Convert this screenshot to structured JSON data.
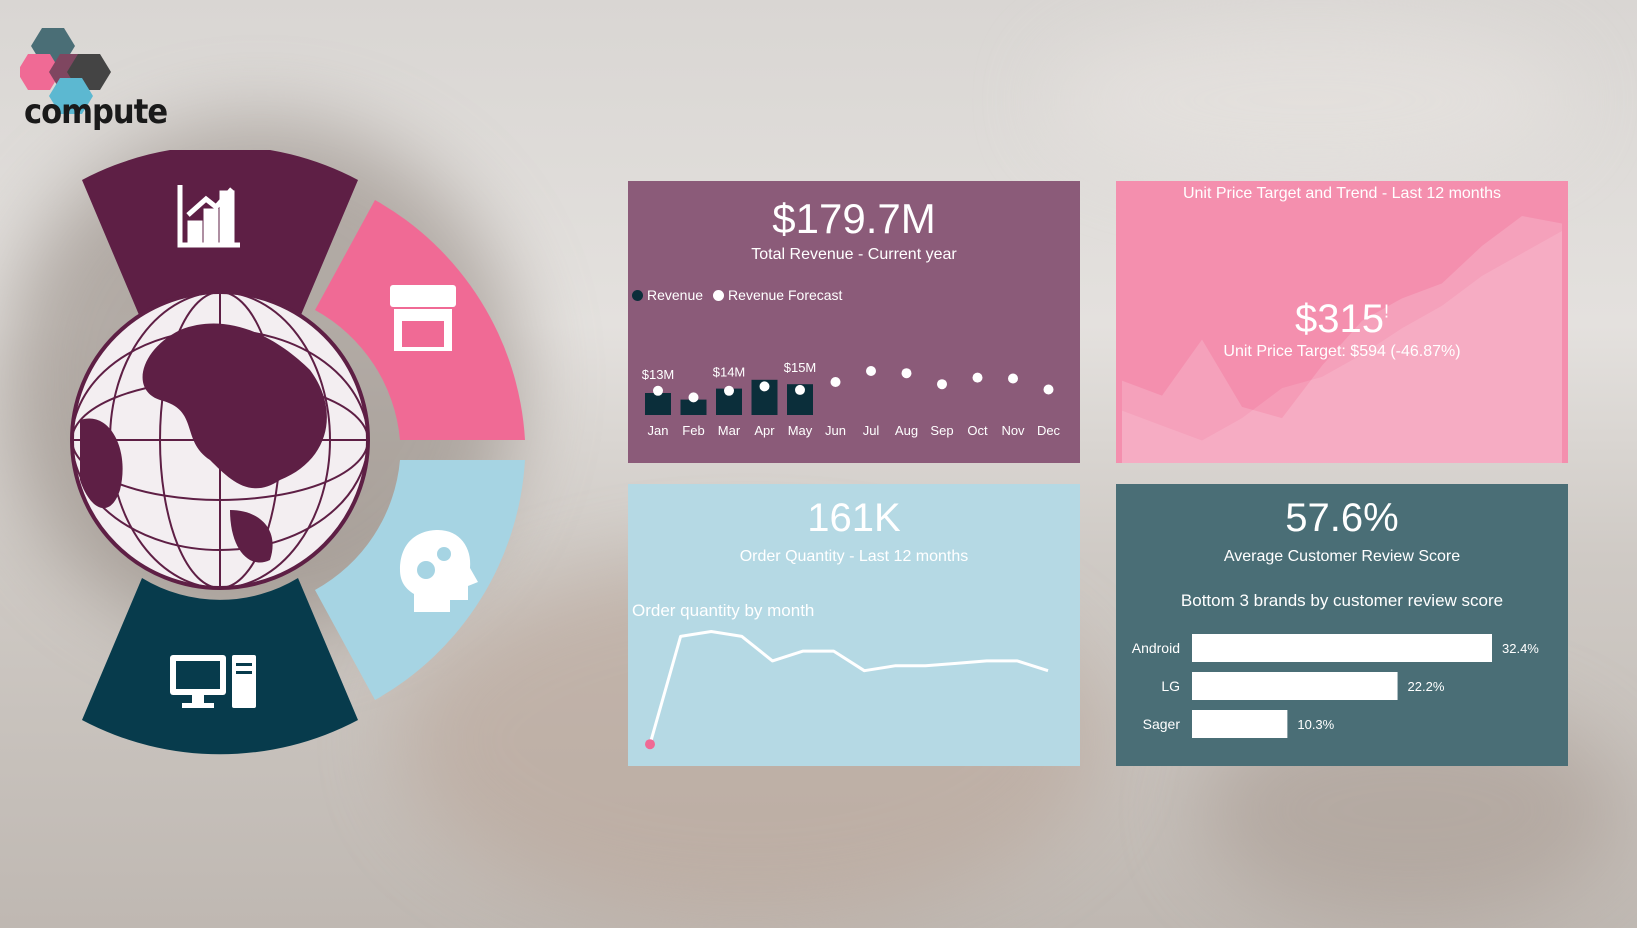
{
  "brand": {
    "name": "compute"
  },
  "nav": {
    "segments": [
      {
        "name": "analytics",
        "icon": "bar-chart-icon",
        "color": "#5e1f45"
      },
      {
        "name": "store",
        "icon": "storefront-icon",
        "color": "#f06a95"
      },
      {
        "name": "ai",
        "icon": "head-gears-icon",
        "color": "#a6d4e3"
      },
      {
        "name": "computer",
        "icon": "desktop-computer-icon",
        "color": "#073b4c"
      }
    ],
    "center_icon": "globe-icon"
  },
  "revenue_card": {
    "value": "$179.7M",
    "label": "Total Revenue - Current year",
    "legend": [
      "Revenue",
      "Revenue Forecast"
    ],
    "color": "#8b5b79"
  },
  "unit_price_card": {
    "title": "Unit Price Target and Trend - Last 12 months",
    "value": "$315",
    "marker": "!",
    "target_label": "Unit Price Target: $594 (-46.87%)",
    "color": "#f48fae"
  },
  "order_card": {
    "value": "161K",
    "label": "Order Quantity - Last 12 months",
    "chart_title": "Order quantity by month",
    "color": "#b5d9e4"
  },
  "review_card": {
    "value": "57.6%",
    "label": "Average Customer Review Score",
    "chart_title": "Bottom 3 brands by customer review score",
    "color": "#4a6e76"
  },
  "chart_data": [
    {
      "type": "bar",
      "categories": [
        "Jan",
        "Feb",
        "Mar",
        "Apr",
        "May",
        "Jun",
        "Jul",
        "Aug",
        "Sep",
        "Oct",
        "Nov",
        "Dec"
      ],
      "series": [
        {
          "name": "Revenue",
          "values": [
            13,
            11.5,
            14,
            16,
            15,
            null,
            null,
            null,
            null,
            null,
            null,
            null
          ]
        },
        {
          "name": "Revenue Forecast",
          "values": [
            13.5,
            12,
            13.5,
            14.5,
            13.7,
            15.5,
            18,
            17.5,
            15,
            16.5,
            16.3,
            13.8
          ]
        }
      ],
      "data_labels": [
        {
          "index": 0,
          "text": "$13M"
        },
        {
          "index": 2,
          "text": "$14M"
        },
        {
          "index": 4,
          "text": "$15M"
        }
      ]
    },
    {
      "type": "area",
      "x": [
        1,
        2,
        3,
        4,
        5,
        6,
        7,
        8,
        9,
        10,
        11,
        12
      ],
      "series": [
        {
          "values": [
            220,
            180,
            330,
            150,
            120,
            260,
            380,
            440,
            480,
            580,
            660,
            640
          ]
        },
        {
          "values": [
            140,
            100,
            60,
            120,
            200,
            230,
            290,
            360,
            420,
            500,
            560,
            620
          ]
        }
      ]
    },
    {
      "type": "line",
      "x": [
        1,
        2,
        3,
        4,
        5,
        6,
        7,
        8,
        9,
        10,
        11,
        12,
        13,
        14
      ],
      "series": [
        {
          "values": [
            2,
            24,
            25,
            24,
            19,
            21,
            21,
            17,
            18,
            18,
            18.5,
            19,
            19,
            17
          ]
        }
      ]
    },
    {
      "type": "bar",
      "orientation": "horizontal",
      "categories": [
        "Android",
        "LG",
        "Sager"
      ],
      "values": [
        32.4,
        22.2,
        10.3
      ],
      "labels": [
        "32.4%",
        "22.2%",
        "10.3%"
      ]
    }
  ]
}
